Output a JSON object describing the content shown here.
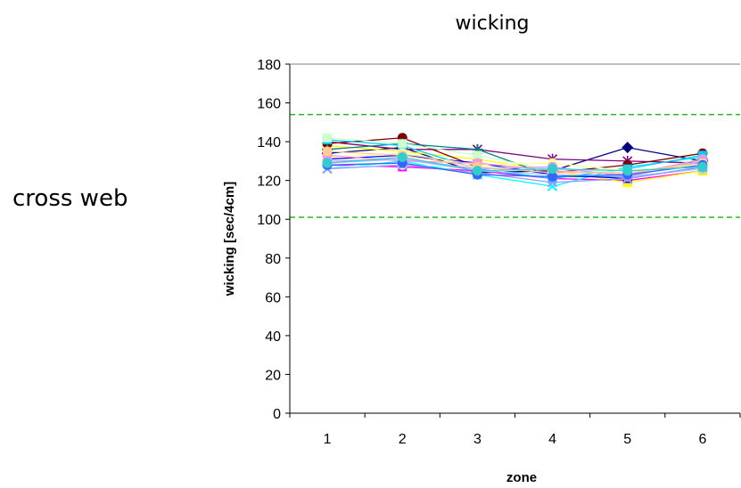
{
  "side_label": "cross web",
  "chart_data": {
    "type": "line",
    "title": "wicking",
    "xlabel": "zone",
    "ylabel": "wicking [sec/4cm]",
    "categories": [
      "1",
      "2",
      "3",
      "4",
      "5",
      "6"
    ],
    "ylim": [
      0,
      180
    ],
    "yticks": [
      0,
      20,
      40,
      60,
      80,
      100,
      120,
      140,
      160,
      180
    ],
    "grid": false,
    "reference_lines": [
      {
        "value": 154,
        "color": "#22bb22",
        "style": "dashed"
      },
      {
        "value": 101,
        "color": "#22bb22",
        "style": "dashed"
      }
    ],
    "series": [
      {
        "values": [
          134,
          137,
          124,
          125,
          137,
          130
        ],
        "color": "#000080",
        "marker": "diamond"
      },
      {
        "values": [
          128,
          127,
          125,
          121,
          120,
          125
        ],
        "color": "#ff00ff",
        "marker": "square"
      },
      {
        "values": [
          138,
          135,
          131,
          125,
          119,
          125
        ],
        "color": "#ffff00",
        "marker": "triangle"
      },
      {
        "values": [
          126,
          130,
          123,
          117,
          127,
          132
        ],
        "color": "#00ffff",
        "marker": "x"
      },
      {
        "values": [
          140,
          136,
          136,
          131,
          130,
          129
        ],
        "color": "#800080",
        "marker": "star"
      },
      {
        "values": [
          139,
          142,
          127,
          124,
          128,
          134
        ],
        "color": "#800000",
        "marker": "circle"
      },
      {
        "values": [
          136,
          139,
          136,
          122,
          122,
          131
        ],
        "color": "#008080",
        "marker": "plus"
      },
      {
        "values": [
          131,
          133,
          129,
          123,
          121,
          127
        ],
        "color": "#0000ff",
        "marker": "square"
      },
      {
        "values": [
          141,
          138,
          126,
          121,
          126,
          133
        ],
        "color": "#00ccff",
        "marker": "square"
      },
      {
        "values": [
          127,
          128,
          127,
          126,
          124,
          128
        ],
        "color": "#ccffff",
        "marker": "circle"
      },
      {
        "values": [
          142,
          139,
          133,
          125,
          123,
          130
        ],
        "color": "#ccffcc",
        "marker": "square"
      },
      {
        "values": [
          132,
          134,
          128,
          129,
          125,
          128
        ],
        "color": "#ffff99",
        "marker": "circle"
      },
      {
        "values": [
          129,
          131,
          125,
          123,
          122,
          126
        ],
        "color": "#99ccff",
        "marker": "circle"
      },
      {
        "values": [
          133,
          130,
          129,
          125,
          123,
          131
        ],
        "color": "#ff99cc",
        "marker": "circle"
      },
      {
        "values": [
          130,
          131,
          126,
          127,
          122,
          130
        ],
        "color": "#cc99ff",
        "marker": "circle"
      },
      {
        "values": [
          126,
          128,
          124,
          119,
          121,
          127
        ],
        "color": "#9999ff",
        "marker": "x"
      },
      {
        "values": [
          135,
          133,
          127,
          124,
          124,
          129
        ],
        "color": "#ffcc99",
        "marker": "circle"
      },
      {
        "values": [
          128,
          129,
          123,
          122,
          123,
          128
        ],
        "color": "#3366ff",
        "marker": "circle"
      },
      {
        "values": [
          129,
          132,
          125,
          126,
          125,
          127
        ],
        "color": "#33cccc",
        "marker": "circle"
      }
    ]
  }
}
